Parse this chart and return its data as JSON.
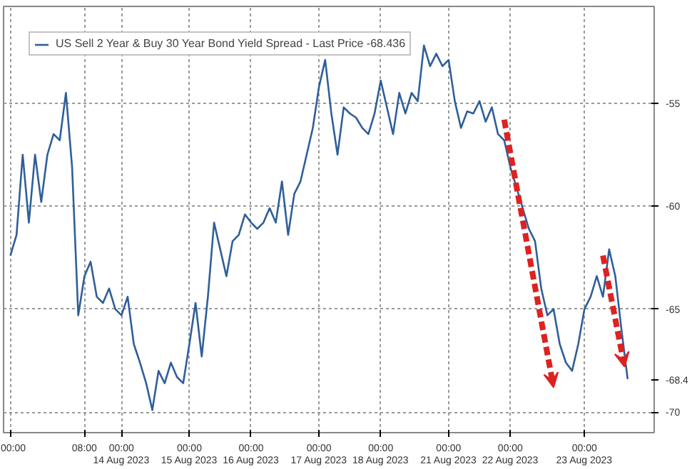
{
  "chart_data": {
    "type": "line",
    "ylim": [
      -71,
      -50.3
    ],
    "categories": [
      "00:00",
      null,
      null,
      null,
      null,
      null,
      null,
      null,
      null,
      null,
      null,
      null,
      "08:00",
      null,
      null,
      null,
      null,
      null,
      "00:00\n14 Aug 2023",
      null,
      null,
      null,
      null,
      null,
      null,
      null,
      null,
      null,
      null,
      "00:00\n15 Aug 2023",
      null,
      null,
      null,
      null,
      null,
      null,
      null,
      null,
      null,
      "00:00\n16 Aug 2023",
      null,
      null,
      null,
      null,
      null,
      null,
      null,
      null,
      null,
      null,
      "00:00\n17 Aug 2023",
      null,
      null,
      null,
      null,
      null,
      null,
      null,
      null,
      null,
      "00:00\n18 Aug 2023",
      null,
      null,
      null,
      null,
      null,
      null,
      null,
      null,
      null,
      null,
      "00:00\n21 Aug 2023",
      null,
      null,
      null,
      null,
      null,
      null,
      null,
      null,
      null,
      "00:00\n22 Aug 2023",
      null,
      null,
      null,
      null,
      null,
      null,
      null,
      null,
      null,
      null,
      null,
      "00:00\n23 Aug 2023",
      null,
      null,
      null,
      null,
      null,
      null,
      null
    ],
    "yticks": [
      -55,
      -60,
      -65,
      -70,
      {
        "value": -68.436,
        "label": "-68.4"
      }
    ],
    "grid": true,
    "legend": "top left",
    "series": [
      {
        "name": "US Sell 2 Year & Buy 30 Year Bond Yield Spread - Last Price -68.436",
        "color": "#2f5f9a",
        "values": [
          -62.4,
          -61.4,
          -57.5,
          -60.8,
          -57.5,
          -59.8,
          -57.5,
          -56.5,
          -56.8,
          -54.5,
          -58.1,
          -65.3,
          -63.4,
          -62.7,
          -64.4,
          -64.7,
          -64.0,
          -65.0,
          -65.3,
          -64.4,
          -66.7,
          -67.6,
          -68.6,
          -69.9,
          -68.0,
          -68.6,
          -67.6,
          -68.3,
          -68.6,
          -66.7,
          -64.7,
          -67.3,
          -64.4,
          -60.8,
          -62.1,
          -63.4,
          -61.7,
          -61.4,
          -60.4,
          -60.8,
          -61.1,
          -60.8,
          -60.1,
          -60.8,
          -58.8,
          -61.4,
          -59.4,
          -58.8,
          -57.5,
          -56.2,
          -54.2,
          -52.9,
          -55.5,
          -57.5,
          -55.2,
          -55.5,
          -55.7,
          -56.2,
          -56.5,
          -55.5,
          -53.9,
          -55.2,
          -56.5,
          -54.5,
          -55.5,
          -54.5,
          -54.9,
          -52.2,
          -53.2,
          -52.6,
          -53.2,
          -52.9,
          -54.9,
          -56.2,
          -55.4,
          -55.5,
          -54.9,
          -55.9,
          -55.2,
          -56.5,
          -56.8,
          -58.1,
          -59.1,
          -60.1,
          -61.1,
          -61.7,
          -64.0,
          -65.3,
          -65.0,
          -66.7,
          -67.6,
          -68.0,
          -66.7,
          -65.0,
          -64.4,
          -63.4,
          -64.4,
          -62.1,
          -63.4,
          -66.0,
          -68.4
        ]
      }
    ]
  }
}
